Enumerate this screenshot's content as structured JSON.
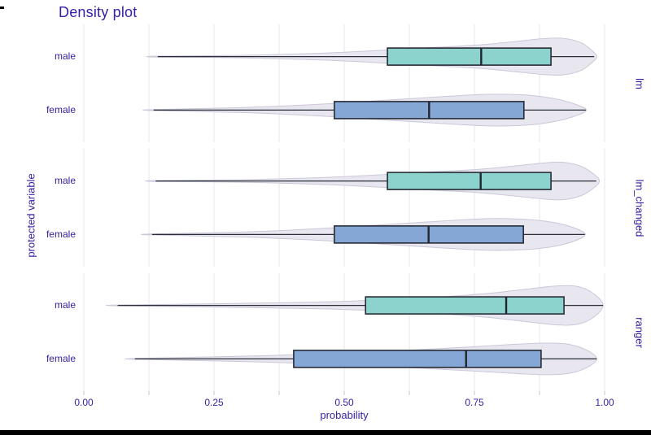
{
  "title": "Density plot",
  "x_axis": {
    "title": "probability",
    "range": [
      0,
      1
    ],
    "major_tick_values": [
      0,
      0.25,
      0.5,
      0.75,
      1
    ],
    "major_tick_labels": [
      "0.00",
      "0.25",
      "0.50",
      "0.75",
      "1.00"
    ],
    "minor_step": 0.125,
    "grid": true
  },
  "y_axis": {
    "title": "protected variable",
    "categories": [
      "male",
      "female"
    ]
  },
  "colors": {
    "text": "#371ea3",
    "male_fill": "#8dd3cd",
    "female_fill": "#85a7d5",
    "box_stroke": "#272b35",
    "median_stroke": "#22252e",
    "whisker_stroke": "#2a2e38",
    "violin_fill": "#e8e7ef",
    "violin_stroke": "#cac8d9",
    "grid": "#e6e5f0",
    "tick_mark": "#c6c4d4",
    "artifact_black": "#000000"
  },
  "chart_data": {
    "type": "violin+box",
    "orientation": "horizontal",
    "legend_position": "none",
    "facet_side": "right",
    "facets": [
      {
        "label": "lm",
        "rows": [
          {
            "group": "male",
            "color_key": "male_fill",
            "box": {
              "min": 0.142,
              "q1": 0.583,
              "median": 0.763,
              "q3": 0.897,
              "max": 0.98
            },
            "violin_profile": [
              [
                0.14,
                0.6
              ],
              [
                0.3,
                1.5
              ],
              [
                0.45,
                4.0
              ],
              [
                0.55,
                7.0
              ],
              [
                0.65,
                10.5
              ],
              [
                0.75,
                14.0
              ],
              [
                0.82,
                18.0
              ],
              [
                0.88,
                22.0
              ],
              [
                0.92,
                22.5
              ],
              [
                0.955,
                17.0
              ],
              [
                0.978,
                6.0
              ],
              [
                0.985,
                0.0
              ]
            ]
          },
          {
            "group": "female",
            "color_key": "female_fill",
            "box": {
              "min": 0.134,
              "q1": 0.481,
              "median": 0.663,
              "q3": 0.845,
              "max": 0.964
            },
            "violin_profile": [
              [
                0.134,
                0.6
              ],
              [
                0.3,
                3.0
              ],
              [
                0.4,
                5.5
              ],
              [
                0.5,
                9.0
              ],
              [
                0.6,
                13.0
              ],
              [
                0.7,
                17.0
              ],
              [
                0.78,
                19.5
              ],
              [
                0.85,
                18.5
              ],
              [
                0.9,
                14.5
              ],
              [
                0.94,
                8.0
              ],
              [
                0.965,
                0.0
              ]
            ]
          }
        ]
      },
      {
        "label": "lm_changed",
        "rows": [
          {
            "group": "male",
            "color_key": "male_fill",
            "box": {
              "min": 0.138,
              "q1": 0.583,
              "median": 0.762,
              "q3": 0.897,
              "max": 0.984
            },
            "violin_profile": [
              [
                0.138,
                0.6
              ],
              [
                0.3,
                1.5
              ],
              [
                0.45,
                4.0
              ],
              [
                0.55,
                7.0
              ],
              [
                0.65,
                10.5
              ],
              [
                0.75,
                14.0
              ],
              [
                0.82,
                18.0
              ],
              [
                0.88,
                22.0
              ],
              [
                0.92,
                23.0
              ],
              [
                0.955,
                18.0
              ],
              [
                0.98,
                8.0
              ],
              [
                0.99,
                0.0
              ]
            ]
          },
          {
            "group": "female",
            "color_key": "female_fill",
            "box": {
              "min": 0.131,
              "q1": 0.481,
              "median": 0.662,
              "q3": 0.844,
              "max": 0.962
            },
            "violin_profile": [
              [
                0.131,
                0.6
              ],
              [
                0.3,
                3.0
              ],
              [
                0.4,
                5.5
              ],
              [
                0.5,
                9.0
              ],
              [
                0.6,
                13.0
              ],
              [
                0.7,
                17.0
              ],
              [
                0.78,
                19.5
              ],
              [
                0.85,
                18.5
              ],
              [
                0.9,
                15.0
              ],
              [
                0.94,
                8.5
              ],
              [
                0.963,
                0.0
              ]
            ]
          }
        ]
      },
      {
        "label": "ranger",
        "rows": [
          {
            "group": "male",
            "color_key": "male_fill",
            "box": {
              "min": 0.065,
              "q1": 0.541,
              "median": 0.811,
              "q3": 0.922,
              "max": 0.997
            },
            "violin_profile": [
              [
                0.065,
                0.5
              ],
              [
                0.25,
                2.0
              ],
              [
                0.4,
                3.5
              ],
              [
                0.5,
                5.0
              ],
              [
                0.6,
                7.5
              ],
              [
                0.7,
                11.0
              ],
              [
                0.78,
                15.0
              ],
              [
                0.85,
                20.0
              ],
              [
                0.91,
                24.0
              ],
              [
                0.95,
                23.0
              ],
              [
                0.98,
                14.0
              ],
              [
                0.997,
                0.0
              ]
            ]
          },
          {
            "group": "female",
            "color_key": "female_fill",
            "box": {
              "min": 0.098,
              "q1": 0.403,
              "median": 0.734,
              "q3": 0.878,
              "max": 0.985
            },
            "violin_profile": [
              [
                0.098,
                0.5
              ],
              [
                0.25,
                2.5
              ],
              [
                0.35,
                4.0
              ],
              [
                0.45,
                6.0
              ],
              [
                0.55,
                8.5
              ],
              [
                0.65,
                11.5
              ],
              [
                0.75,
                15.0
              ],
              [
                0.83,
                18.0
              ],
              [
                0.89,
                19.5
              ],
              [
                0.93,
                18.0
              ],
              [
                0.965,
                11.0
              ],
              [
                0.985,
                0.0
              ]
            ]
          }
        ]
      }
    ]
  }
}
